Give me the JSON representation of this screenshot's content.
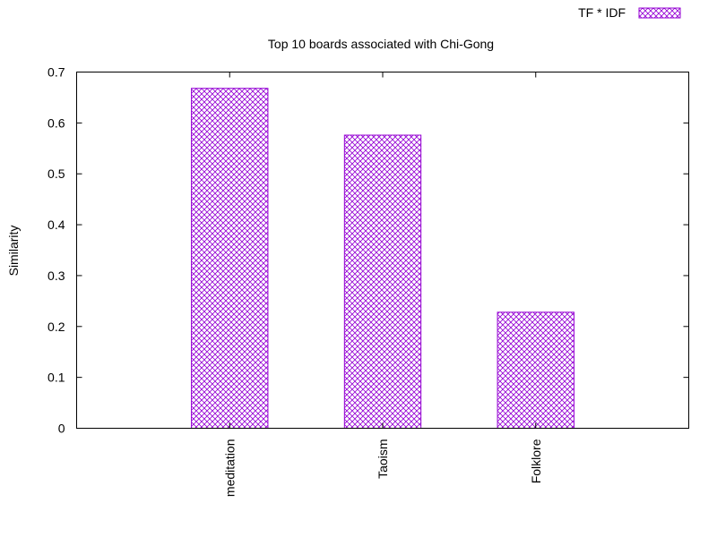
{
  "colors": {
    "bar": "#9400d3",
    "axis": "#000000",
    "background": "#ffffff"
  },
  "chart_data": {
    "type": "bar",
    "title": "Top 10 boards associated with Chi-Gong",
    "xlabel": "",
    "ylabel": "Similarity",
    "categories": [
      "meditation",
      "Taoism",
      "Folklore"
    ],
    "series": [
      {
        "name": "TF * IDF",
        "values": [
          0.668,
          0.576,
          0.228
        ]
      }
    ],
    "ylim": [
      0,
      0.7
    ],
    "yticks": [
      0,
      0.1,
      0.2,
      0.3,
      0.4,
      0.5,
      0.6,
      0.7
    ],
    "ytick_labels": [
      "0",
      "0.1",
      "0.2",
      "0.3",
      "0.4",
      "0.5",
      "0.6",
      "0.7"
    ],
    "x_range": [
      -1,
      3
    ],
    "bar_fill": "crosshatch",
    "legend_position": "top-right",
    "grid": false
  }
}
